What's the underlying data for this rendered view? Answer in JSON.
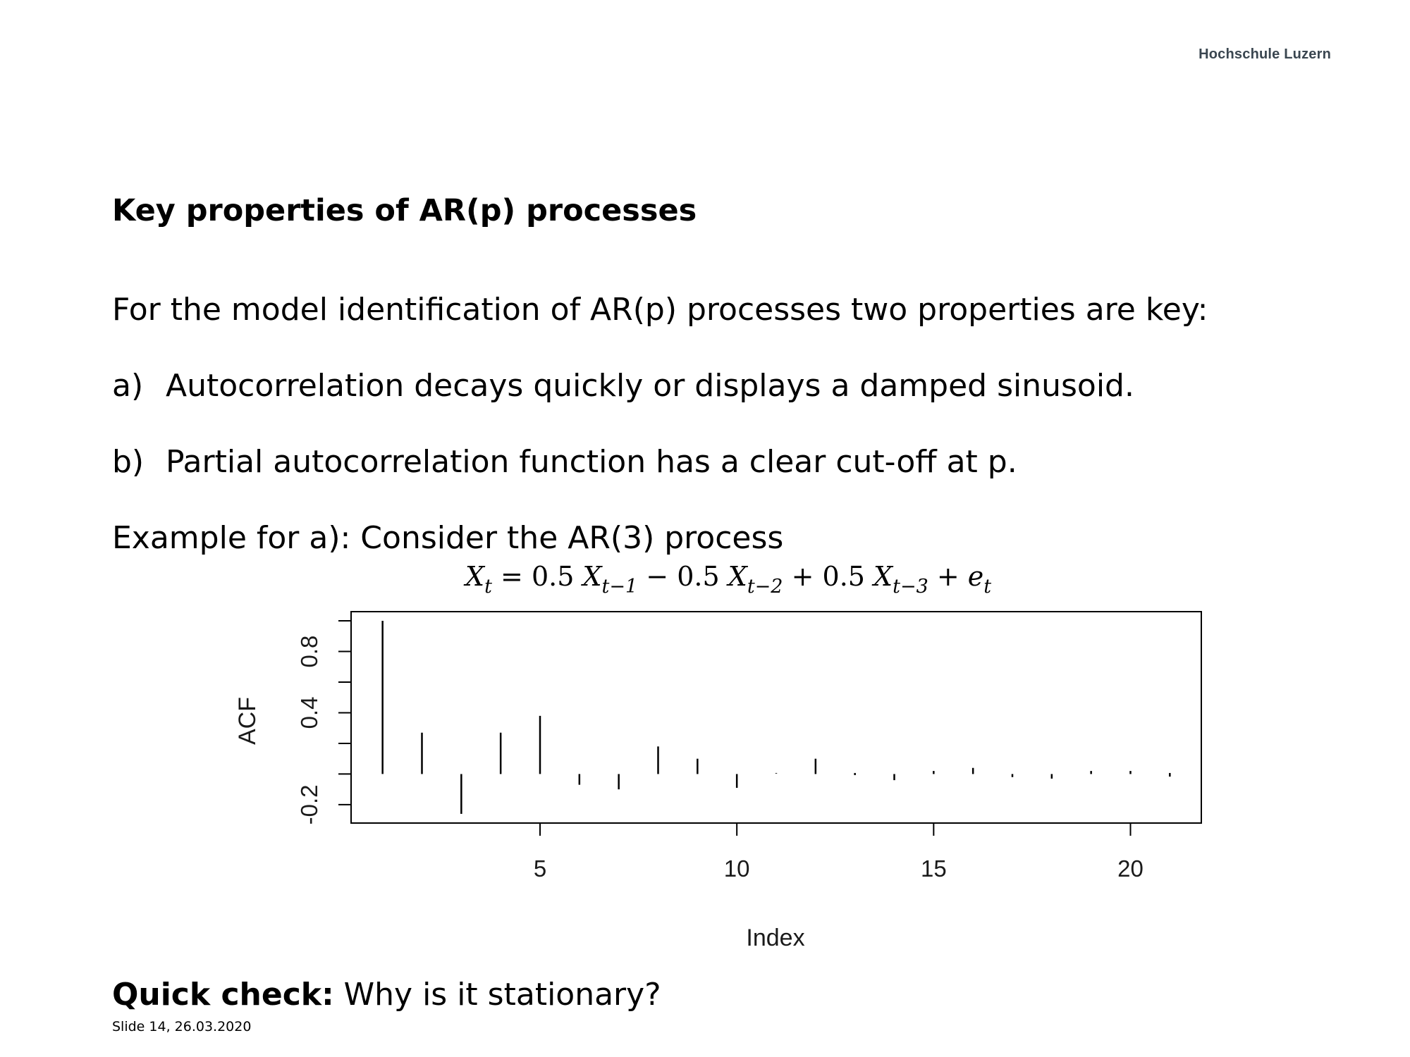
{
  "header": {
    "brand": "Hochschule Luzern"
  },
  "slide": {
    "title": "Key properties of AR(p) processes",
    "intro": "For the model identification of AR(p) processes two properties are key:",
    "items": [
      {
        "marker": "a)",
        "text": "Autocorrelation decays quickly or displays a damped sinusoid."
      },
      {
        "marker": "b)",
        "text": "Partial autocorrelation function has a clear cut-off at p."
      }
    ],
    "example": "Example for a): Consider the AR(3) process",
    "formula": {
      "lhs_var": "X",
      "lhs_sub": "t",
      "eq": "=",
      "c1": "0.5",
      "v1": "X",
      "s1": "t−1",
      "op1": "−",
      "c2": "0.5",
      "v2": "X",
      "s2": "t−2",
      "op2": "+",
      "c3": "0.5",
      "v3": "X",
      "s3": "t−3",
      "op3": "+",
      "err": "e",
      "err_sub": "t"
    },
    "quick_check": {
      "label": "Quick check:",
      "text": " Why is it stationary?"
    },
    "footer": "Slide  14, 26.03.2020"
  },
  "chart_data": {
    "type": "bar",
    "xlabel": "Index",
    "ylabel": "ACF",
    "x": [
      1,
      2,
      3,
      4,
      5,
      6,
      7,
      8,
      9,
      10,
      11,
      12,
      13,
      14,
      15,
      16,
      17,
      18,
      19,
      20,
      21
    ],
    "values": [
      1.0,
      0.27,
      -0.26,
      0.27,
      0.38,
      -0.07,
      -0.1,
      0.18,
      0.1,
      -0.09,
      0.01,
      0.1,
      0.0,
      -0.04,
      0.02,
      0.04,
      -0.02,
      -0.03,
      0.02,
      0.02,
      -0.01
    ],
    "xticks": [
      5,
      10,
      15,
      20
    ],
    "yticks": [
      -0.2,
      0.4,
      0.8
    ],
    "ytick_labels": [
      "-0.2",
      "0.4",
      "0.8"
    ],
    "yminor_ticks": [
      -0.2,
      0.0,
      0.2,
      0.4,
      0.6,
      0.8,
      1.0
    ],
    "xlim": [
      0.2,
      21.8
    ],
    "ylim": [
      -0.32,
      1.06
    ],
    "grid": false
  }
}
